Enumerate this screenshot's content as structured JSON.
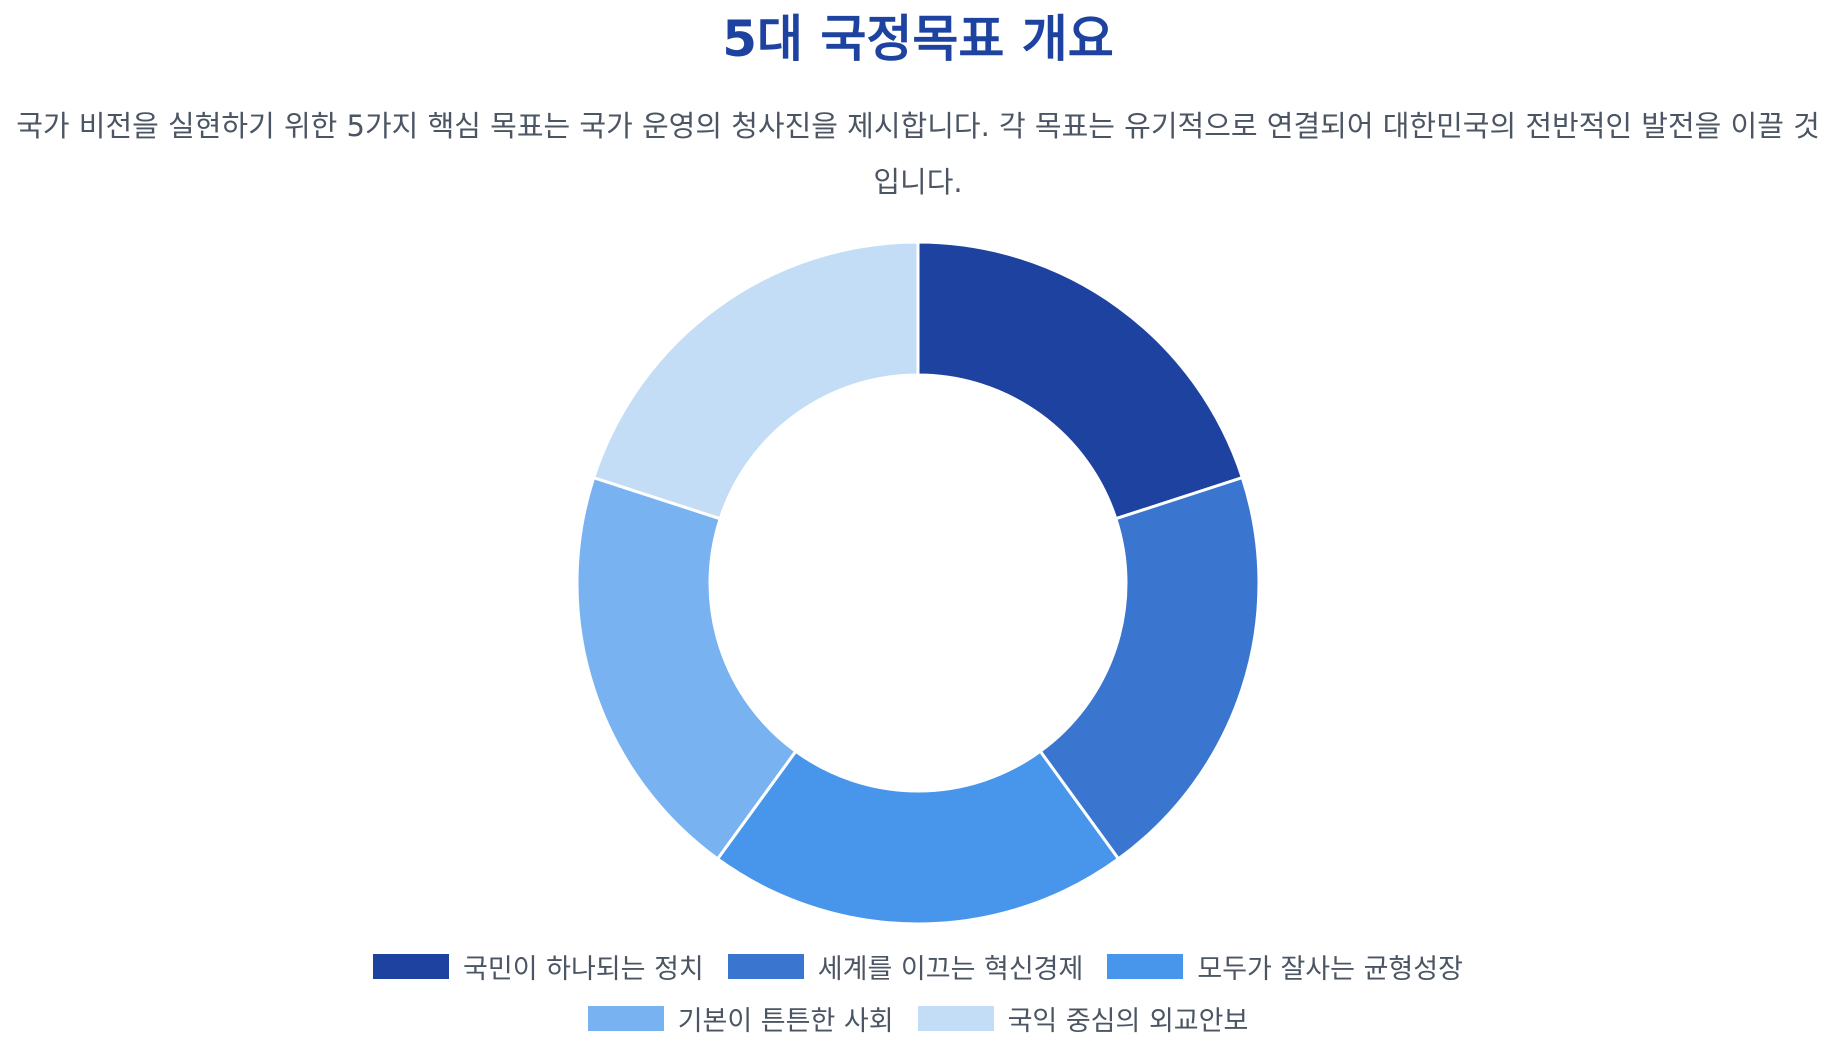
{
  "header": {
    "title": "5대 국정목표 개요",
    "subtitle": "국가 비전을 실현하기 위한 5가지 핵심 목표는 국가 운영의 청사진을 제시합니다. 각 목표는 유기적으로 연결되어 대한민국의 전반적인 발전을 이끌 것입니다."
  },
  "chart_data": {
    "type": "pie",
    "donut": true,
    "categories": [
      "국민이 하나되는 정치",
      "세계를 이끄는 혁신경제",
      "모두가 잘사는 균형성장",
      "기본이 튼튼한 사회",
      "국익 중심의 외교안보"
    ],
    "values": [
      20,
      20,
      20,
      20,
      20
    ],
    "colors": [
      "#1e429f",
      "#3a76d0",
      "#4896ec",
      "#78b2f0",
      "#c3ddf7"
    ],
    "legend": "bottom"
  }
}
